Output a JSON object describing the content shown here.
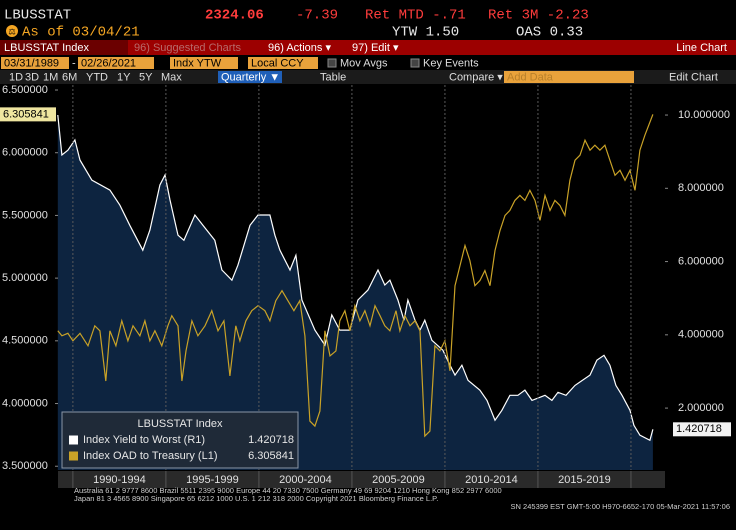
{
  "header": {
    "ticker": "LBUSSTAT",
    "price": "2324.06",
    "change": "-7.39",
    "ret_mtd": "Ret MTD -.71",
    "ret_3m": "Ret 3M -2.23",
    "as_of": "As of 03/04/21",
    "ytw": "YTW 1.50",
    "oas": "OAS 0.33"
  },
  "toolbar": {
    "security": "LBUSSTAT Index",
    "suggested": "96) Suggested Charts",
    "actions": "96) Actions ▾",
    "edit": "97) Edit ▾",
    "view": "Line Chart"
  },
  "controls": {
    "start_date": "03/31/1989",
    "dash": "-",
    "end_date": "02/26/2021",
    "field": "Indx YTW",
    "currency": "Local CCY",
    "mov_avgs": "Mov Avgs",
    "key_events": "Key Events",
    "ranges": [
      "1D",
      "3D",
      "1M",
      "6M",
      "YTD",
      "1Y",
      "5Y",
      "Max"
    ],
    "period": "Quarterly ▼",
    "table": "Table",
    "compare": "Compare ▾",
    "add_data": "Add Data",
    "edit_chart": "Edit Chart"
  },
  "chart_data": {
    "type": "line",
    "legend_title": "LBUSSTAT Index",
    "xlim": [
      1989.2,
      2021.83
    ],
    "xgrid": [
      1990,
      1995,
      2000,
      2005,
      2010,
      2015,
      2020
    ],
    "xticks": [
      {
        "value": 1992.5,
        "label": "1990-1994"
      },
      {
        "value": 1997.5,
        "label": "1995-1999"
      },
      {
        "value": 2002.5,
        "label": "2000-2004"
      },
      {
        "value": 2007.5,
        "label": "2005-2009"
      },
      {
        "value": 2012.5,
        "label": "2010-2014"
      },
      {
        "value": 2017.5,
        "label": "2015-2019"
      }
    ],
    "ylim": [
      3.47,
      6.54
    ],
    "yticks": [
      {
        "value": 3.5,
        "label": "3.500000"
      },
      {
        "value": 4.0,
        "label": "4.000000"
      },
      {
        "value": 4.5,
        "label": "4.500000"
      },
      {
        "value": 5.0,
        "label": "5.000000"
      },
      {
        "value": 5.5,
        "label": "5.500000"
      },
      {
        "value": 6.0,
        "label": "6.000000"
      },
      {
        "value": 6.5,
        "label": "6.500000"
      }
    ],
    "y2lim": [
      0.31,
      10.82
    ],
    "y2ticks": [
      {
        "value": 2,
        "label": "2.000000"
      },
      {
        "value": 4,
        "label": "4.000000"
      },
      {
        "value": 6,
        "label": "6.000000"
      },
      {
        "value": 8,
        "label": "8.000000"
      },
      {
        "value": 10,
        "label": "10.000000"
      }
    ],
    "series": [
      {
        "name": "Index Yield to Worst (R1)",
        "axis": "y2",
        "color": "#ffffff",
        "fill": "#0d2440",
        "x": [
          1989.19,
          1989.41,
          1989.73,
          1990.11,
          1990.38,
          1991.02,
          1991.99,
          1992.53,
          1993.06,
          1993.76,
          1994.14,
          1994.68,
          1994.95,
          1995.22,
          1995.65,
          1995.97,
          1996.56,
          1996.99,
          1997.63,
          1998.01,
          1998.55,
          1998.87,
          1999.52,
          1999.95,
          2000.59,
          2000.86,
          2001.13,
          2001.67,
          2001.99,
          2002.31,
          2003.01,
          2003.55,
          2003.92,
          2004.35,
          2004.89,
          2005.32,
          2005.86,
          2006.4,
          2006.77,
          2007.04,
          2007.47,
          2007.8,
          2008.01,
          2008.39,
          2008.66,
          2008.92,
          2009.3,
          2009.89,
          2010.27,
          2010.54,
          2010.91,
          2011.24,
          2011.88,
          2012.26,
          2012.69,
          2013.06,
          2013.49,
          2013.92,
          2014.3,
          2014.68,
          2015.38,
          2015.75,
          2016.08,
          2016.51,
          2016.99,
          2017.8,
          2018.17,
          2018.55,
          2018.87,
          2019.19,
          2019.52,
          2019.95,
          2020.16,
          2020.48,
          2021.02,
          2021.18
        ],
        "values": [
          10.0,
          8.91,
          9.04,
          9.32,
          8.77,
          8.22,
          7.95,
          7.54,
          6.99,
          6.31,
          6.86,
          8.09,
          8.36,
          7.68,
          6.72,
          6.58,
          7.27,
          6.99,
          6.58,
          5.77,
          5.49,
          5.9,
          6.99,
          7.27,
          7.27,
          6.72,
          6.31,
          5.77,
          6.17,
          4.95,
          4.13,
          3.72,
          4.54,
          4.13,
          4.13,
          4.95,
          5.22,
          5.77,
          5.36,
          5.49,
          4.95,
          4.4,
          4.95,
          4.4,
          4.13,
          4.4,
          3.85,
          3.58,
          3.17,
          2.9,
          3.17,
          2.76,
          2.49,
          2.21,
          1.67,
          1.94,
          2.35,
          2.35,
          2.49,
          2.21,
          2.35,
          2.21,
          2.43,
          2.35,
          2.62,
          2.9,
          3.31,
          3.44,
          3.17,
          2.62,
          2.35,
          1.94,
          1.53,
          1.26,
          1.12,
          1.420718
        ]
      },
      {
        "name": "Index OAD to Treasury (L1)",
        "axis": "y",
        "color": "#c9a227",
        "x": [
          1989.19,
          1989.41,
          1989.73,
          1990.0,
          1990.38,
          1990.81,
          1991.18,
          1991.45,
          1991.77,
          1991.99,
          1992.31,
          1992.63,
          1992.96,
          1993.23,
          1993.6,
          1993.87,
          1994.14,
          1994.41,
          1994.78,
          1995.11,
          1995.32,
          1995.65,
          1995.86,
          1996.08,
          1996.4,
          1996.72,
          1997.1,
          1997.47,
          1997.8,
          1998.12,
          1998.44,
          1998.76,
          1998.98,
          1999.3,
          1999.62,
          1999.95,
          2000.32,
          2000.59,
          2000.91,
          2001.24,
          2001.56,
          2001.88,
          2002.2,
          2002.47,
          2002.74,
          2003.01,
          2003.28,
          2003.55,
          2003.82,
          2004.14,
          2004.35,
          2004.62,
          2004.89,
          2005.16,
          2005.43,
          2005.7,
          2005.97,
          2006.24,
          2006.51,
          2006.77,
          2007.04,
          2007.37,
          2007.58,
          2007.85,
          2008.12,
          2008.39,
          2008.66,
          2008.92,
          2009.19,
          2009.46,
          2009.73,
          2010.0,
          2010.27,
          2010.54,
          2010.81,
          2011.08,
          2011.34,
          2011.61,
          2011.88,
          2012.15,
          2012.42,
          2012.69,
          2012.96,
          2013.23,
          2013.49,
          2013.76,
          2014.03,
          2014.3,
          2014.57,
          2014.84,
          2015.11,
          2015.38,
          2015.65,
          2015.91,
          2016.18,
          2016.45,
          2016.72,
          2016.99,
          2017.26,
          2017.53,
          2017.8,
          2018.06,
          2018.33,
          2018.6,
          2018.87,
          2019.14,
          2019.41,
          2019.68,
          2019.95,
          2020.22,
          2020.48,
          2020.75,
          2021.18
        ],
        "values": [
          4.58,
          4.54,
          4.56,
          4.5,
          4.56,
          4.46,
          4.62,
          4.58,
          4.18,
          4.58,
          4.46,
          4.66,
          4.5,
          4.62,
          4.54,
          4.66,
          4.5,
          4.58,
          4.46,
          4.62,
          4.7,
          4.62,
          4.18,
          4.42,
          4.66,
          4.54,
          4.62,
          4.74,
          4.58,
          4.66,
          4.22,
          4.62,
          4.5,
          4.66,
          4.74,
          4.78,
          4.74,
          4.66,
          4.82,
          4.9,
          4.82,
          4.74,
          4.82,
          4.54,
          3.86,
          3.82,
          3.94,
          4.58,
          4.38,
          4.42,
          4.66,
          4.74,
          4.58,
          4.78,
          4.66,
          4.74,
          4.62,
          4.78,
          4.7,
          4.62,
          4.58,
          4.74,
          4.58,
          4.7,
          4.62,
          4.66,
          4.58,
          3.74,
          3.78,
          4.46,
          4.42,
          4.5,
          4.26,
          4.94,
          5.1,
          5.26,
          5.14,
          4.94,
          4.98,
          5.06,
          4.94,
          5.22,
          5.38,
          5.5,
          5.54,
          5.62,
          5.66,
          5.62,
          5.7,
          5.62,
          5.46,
          5.66,
          5.54,
          5.62,
          5.58,
          5.5,
          5.78,
          5.94,
          5.98,
          6.1,
          6.02,
          6.06,
          6.02,
          6.06,
          5.94,
          5.82,
          5.86,
          5.78,
          5.86,
          5.7,
          6.02,
          6.14,
          6.305841
        ]
      }
    ]
  },
  "footer": {
    "line1": "Australia 61 2 9777 8600 Brazil 5511 2395 9000 Europe 44 20 7330 7500 Germany 49 69 9204 1210 Hong Kong 852 2977 6000",
    "line2": "Japan 81 3 4565 8900       Singapore 65 6212 1000       U.S. 1 212 318 2000       Copyright 2021 Bloomberg Finance L.P.",
    "line3": "SN 245399 EST  GMT-5:00 H970-6652-170 05-Mar-2021 11:57:06"
  }
}
